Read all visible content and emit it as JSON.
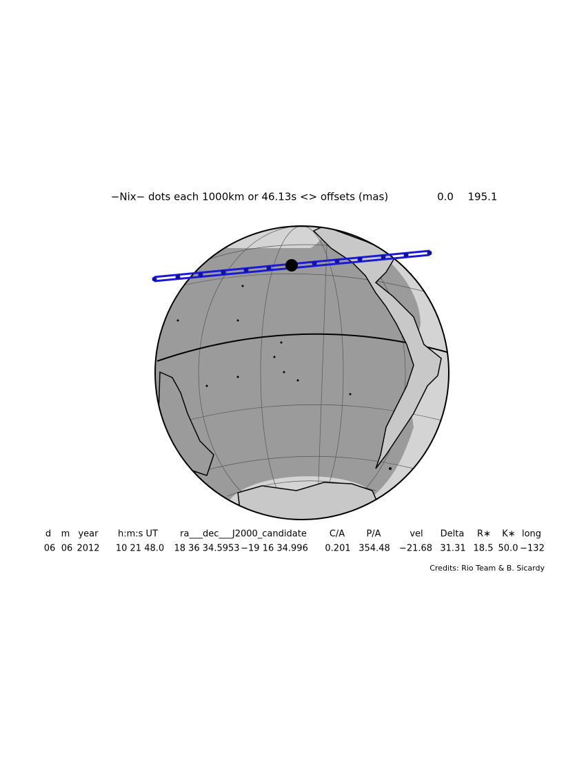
{
  "header": {
    "title": "−Nix− dots each 1000km or 46.13s <> offsets (mas)",
    "offsets": [
      "0.0",
      "195.1"
    ]
  },
  "table": {
    "columns": [
      "d",
      "m",
      "year",
      "h:m:s UT",
      "ra___dec___J2000_candidate",
      "C/A",
      "P/A",
      "vel",
      "Delta",
      "R∗",
      "K∗",
      "long"
    ],
    "row": [
      "06",
      "06",
      "2012",
      "10 21 48.0",
      "18 36 34.5953",
      "−19 16 34.996",
      "0.201",
      "354.48",
      "−21.68",
      "31.31",
      "18.5",
      "50.0",
      "−132"
    ]
  },
  "credits": "Credits: Rio Team & B. Sicardy"
}
